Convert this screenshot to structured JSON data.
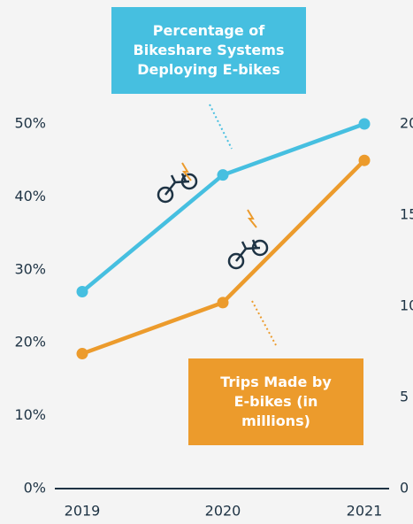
{
  "chart_data": {
    "type": "line",
    "categories": [
      "2019",
      "2020",
      "2021"
    ],
    "series": [
      {
        "name": "Percentage of Bikeshare Systems Deploying E-bikes",
        "color": "#46bfe0",
        "values": [
          27,
          43,
          50
        ]
      },
      {
        "name": "Trips Made by E-bikes (in millions)",
        "color": "#ec9b2c",
        "values": [
          7.4,
          10.2,
          18
        ],
        "axis": "y2"
      }
    ],
    "ylim": [
      0,
      50
    ],
    "yticks": [
      {
        "value": 0,
        "label": "0%"
      },
      {
        "value": 10,
        "label": "10%"
      },
      {
        "value": 20,
        "label": "20%"
      },
      {
        "value": 30,
        "label": "30%"
      },
      {
        "value": 40,
        "label": "40%"
      },
      {
        "value": 50,
        "label": "50%"
      }
    ],
    "y2lim": [
      0,
      20
    ],
    "y2ticks": [
      0,
      5,
      10,
      15,
      20
    ]
  }
}
